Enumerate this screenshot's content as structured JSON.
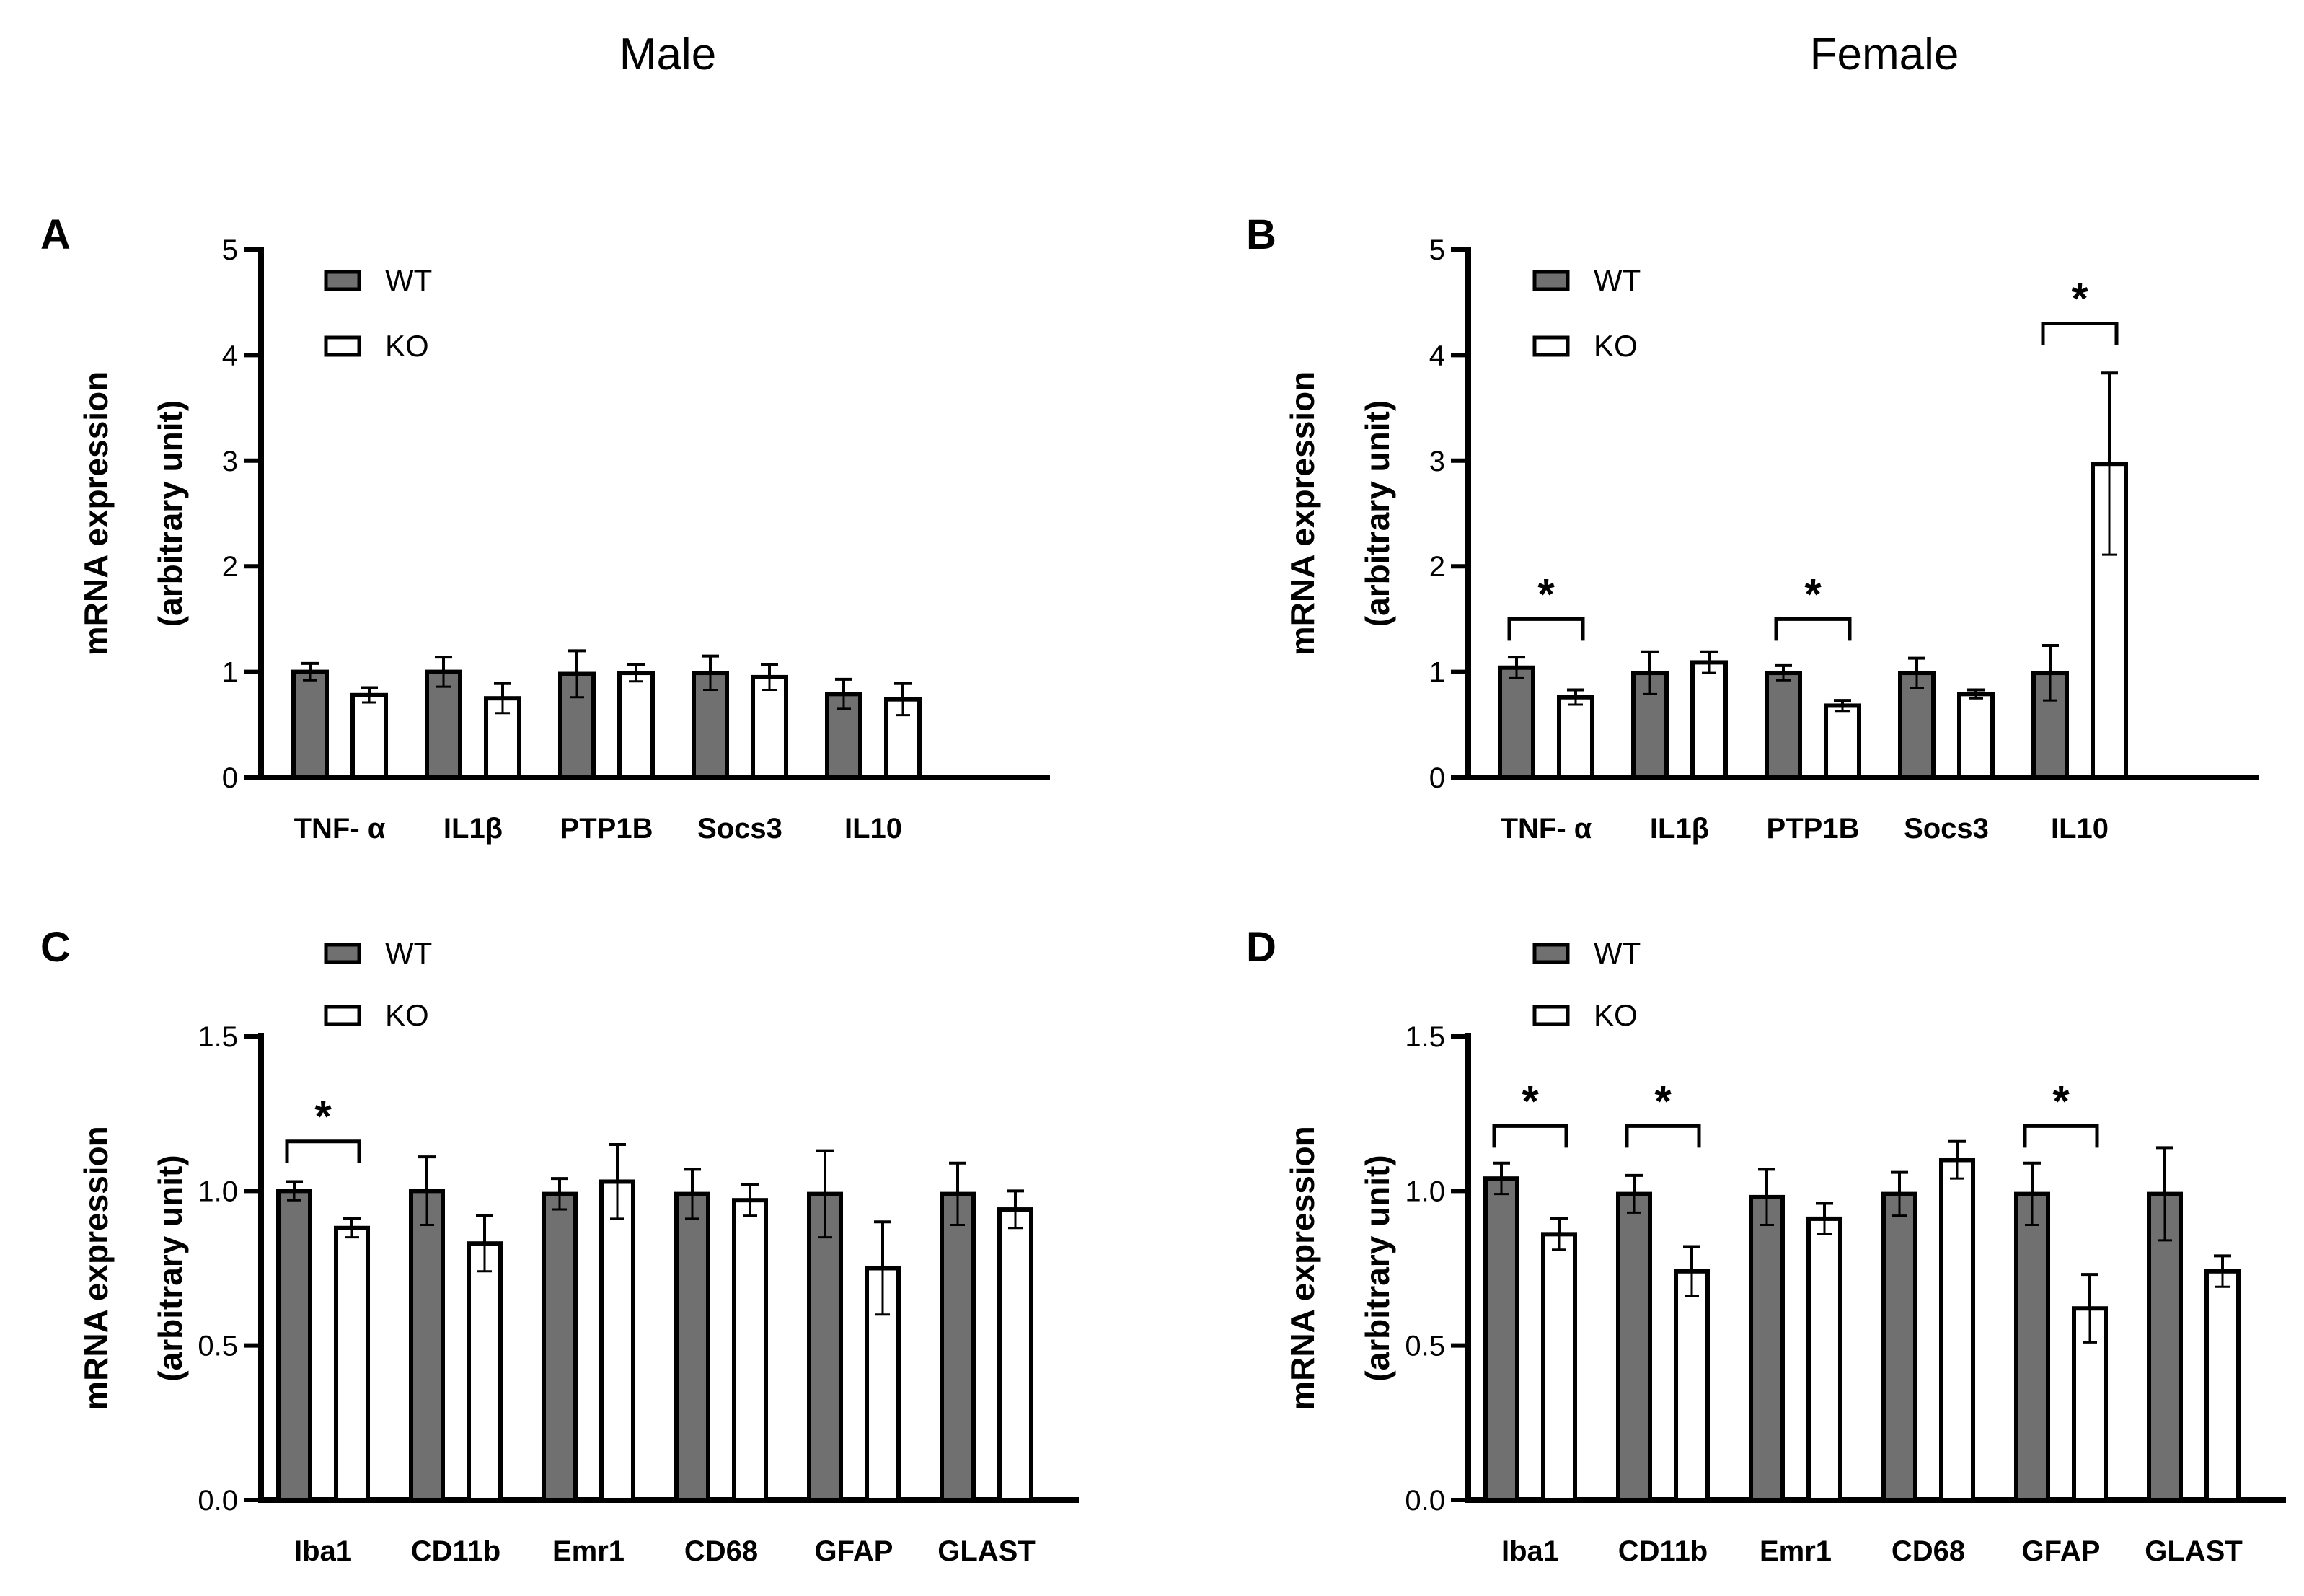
{
  "column_titles": {
    "left": "Male",
    "right": "Female"
  },
  "legend": {
    "wt": "WT",
    "ko": "KO"
  },
  "colors": {
    "wt": "#707070",
    "ko": "#ffffff",
    "stroke": "#000000"
  },
  "chart_data": [
    {
      "panel": "A",
      "type": "bar",
      "sex": "Male",
      "ylabel": "mRNA expression",
      "ylabel2": "(arbitrary unit)",
      "ylim": [
        0,
        5
      ],
      "yticks": [
        "0",
        "1",
        "2",
        "3",
        "4",
        "5"
      ],
      "yticks_values": [
        0,
        1,
        2,
        3,
        4,
        5
      ],
      "legend_position": "top-left",
      "categories": [
        "TNF- α",
        "IL1β",
        "PTP1B",
        "Socs3",
        "IL10"
      ],
      "series": [
        {
          "name": "WT",
          "values": [
            1.0,
            1.0,
            0.98,
            0.99,
            0.79
          ],
          "errors": [
            0.08,
            0.14,
            0.22,
            0.16,
            0.14
          ]
        },
        {
          "name": "KO",
          "values": [
            0.78,
            0.75,
            0.99,
            0.95,
            0.74
          ],
          "errors": [
            0.07,
            0.14,
            0.08,
            0.12,
            0.15
          ]
        }
      ],
      "significance": []
    },
    {
      "panel": "B",
      "type": "bar",
      "sex": "Female",
      "ylabel": "mRNA expression",
      "ylabel2": "(arbitrary unit)",
      "ylim": [
        0,
        5
      ],
      "yticks": [
        "0",
        "1",
        "2",
        "3",
        "4",
        "5"
      ],
      "yticks_values": [
        0,
        1,
        2,
        3,
        4,
        5
      ],
      "legend_position": "top-left",
      "categories": [
        "TNF- α",
        "IL1β",
        "PTP1B",
        "Socs3",
        "IL10"
      ],
      "series": [
        {
          "name": "WT",
          "values": [
            1.04,
            0.99,
            0.99,
            0.99,
            0.99
          ],
          "errors": [
            0.1,
            0.2,
            0.07,
            0.14,
            0.26
          ]
        },
        {
          "name": "KO",
          "values": [
            0.76,
            1.09,
            0.68,
            0.79,
            2.97
          ],
          "errors": [
            0.07,
            0.1,
            0.05,
            0.04,
            0.86
          ]
        }
      ],
      "significance": [
        {
          "category": 0,
          "y": 1.5,
          "label": "*"
        },
        {
          "category": 2,
          "y": 1.5,
          "label": "*"
        },
        {
          "category": 4,
          "y": 4.3,
          "label": "*"
        }
      ]
    },
    {
      "panel": "C",
      "type": "bar",
      "sex": "Male",
      "ylabel": "mRNA expression",
      "ylabel2": "(arbitrary unit)",
      "ylim": [
        0,
        1.5
      ],
      "yticks": [
        "0.0",
        "0.5",
        "1.0",
        "1.5"
      ],
      "yticks_values": [
        0,
        0.5,
        1.0,
        1.5
      ],
      "legend_position": "top-left",
      "categories": [
        "Iba1",
        "CD11b",
        "Emr1",
        "CD68",
        "GFAP",
        "GLAST"
      ],
      "series": [
        {
          "name": "WT",
          "values": [
            1.0,
            1.0,
            0.99,
            0.99,
            0.99,
            0.99
          ],
          "errors": [
            0.03,
            0.11,
            0.05,
            0.08,
            0.14,
            0.1
          ]
        },
        {
          "name": "KO",
          "values": [
            0.88,
            0.83,
            1.03,
            0.97,
            0.75,
            0.94
          ],
          "errors": [
            0.03,
            0.09,
            0.12,
            0.05,
            0.15,
            0.06
          ]
        }
      ],
      "significance": [
        {
          "category": 0,
          "y": 1.16,
          "label": "*"
        }
      ]
    },
    {
      "panel": "D",
      "type": "bar",
      "sex": "Female",
      "ylabel": "mRNA expression",
      "ylabel2": "(arbitrary unit)",
      "ylim": [
        0,
        1.5
      ],
      "yticks": [
        "0.0",
        "0.5",
        "1.0",
        "1.5"
      ],
      "yticks_values": [
        0,
        0.5,
        1.0,
        1.5
      ],
      "legend_position": "top-left",
      "categories": [
        "Iba1",
        "CD11b",
        "Emr1",
        "CD68",
        "GFAP",
        "GLAST"
      ],
      "series": [
        {
          "name": "WT",
          "values": [
            1.04,
            0.99,
            0.98,
            0.99,
            0.99,
            0.99
          ],
          "errors": [
            0.05,
            0.06,
            0.09,
            0.07,
            0.1,
            0.15
          ]
        },
        {
          "name": "KO",
          "values": [
            0.86,
            0.74,
            0.91,
            1.1,
            0.62,
            0.74
          ],
          "errors": [
            0.05,
            0.08,
            0.05,
            0.06,
            0.11,
            0.05
          ]
        }
      ],
      "significance": [
        {
          "category": 0,
          "y": 1.21,
          "label": "*"
        },
        {
          "category": 1,
          "y": 1.21,
          "label": "*"
        },
        {
          "category": 4,
          "y": 1.21,
          "label": "*"
        }
      ]
    }
  ]
}
